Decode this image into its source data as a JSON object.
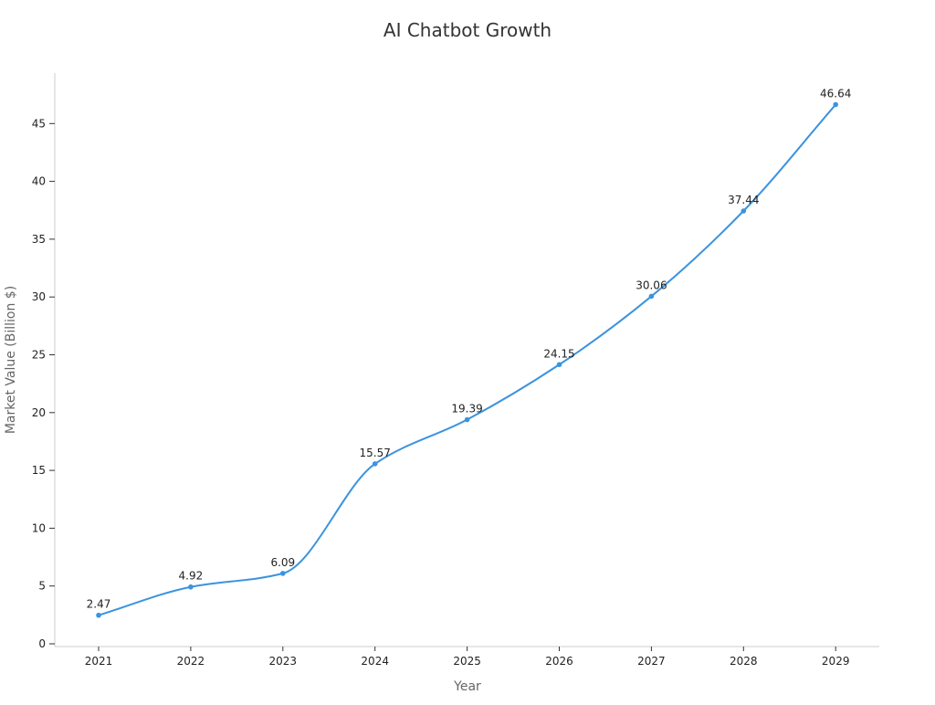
{
  "chart_data": {
    "type": "line",
    "title": "AI Chatbot Growth",
    "xlabel": "Year",
    "ylabel": "Market Value (Billion $)",
    "categories": [
      "2021",
      "2022",
      "2023",
      "2024",
      "2025",
      "2026",
      "2027",
      "2028",
      "2029"
    ],
    "series": [
      {
        "values": [
          2.47,
          4.92,
          6.09,
          15.57,
          19.39,
          24.15,
          30.06,
          37.44,
          46.64
        ],
        "data_labels": [
          "2.47",
          "4.92",
          "6.09",
          "15.57",
          "19.39",
          "24.15",
          "30.06",
          "37.44",
          "46.64"
        ]
      }
    ],
    "ylim": [
      0,
      49
    ],
    "yticks": [
      0,
      5,
      10,
      15,
      20,
      25,
      30,
      35,
      40,
      45
    ],
    "grid": false,
    "smooth": true,
    "line_color": "#3b93df"
  }
}
